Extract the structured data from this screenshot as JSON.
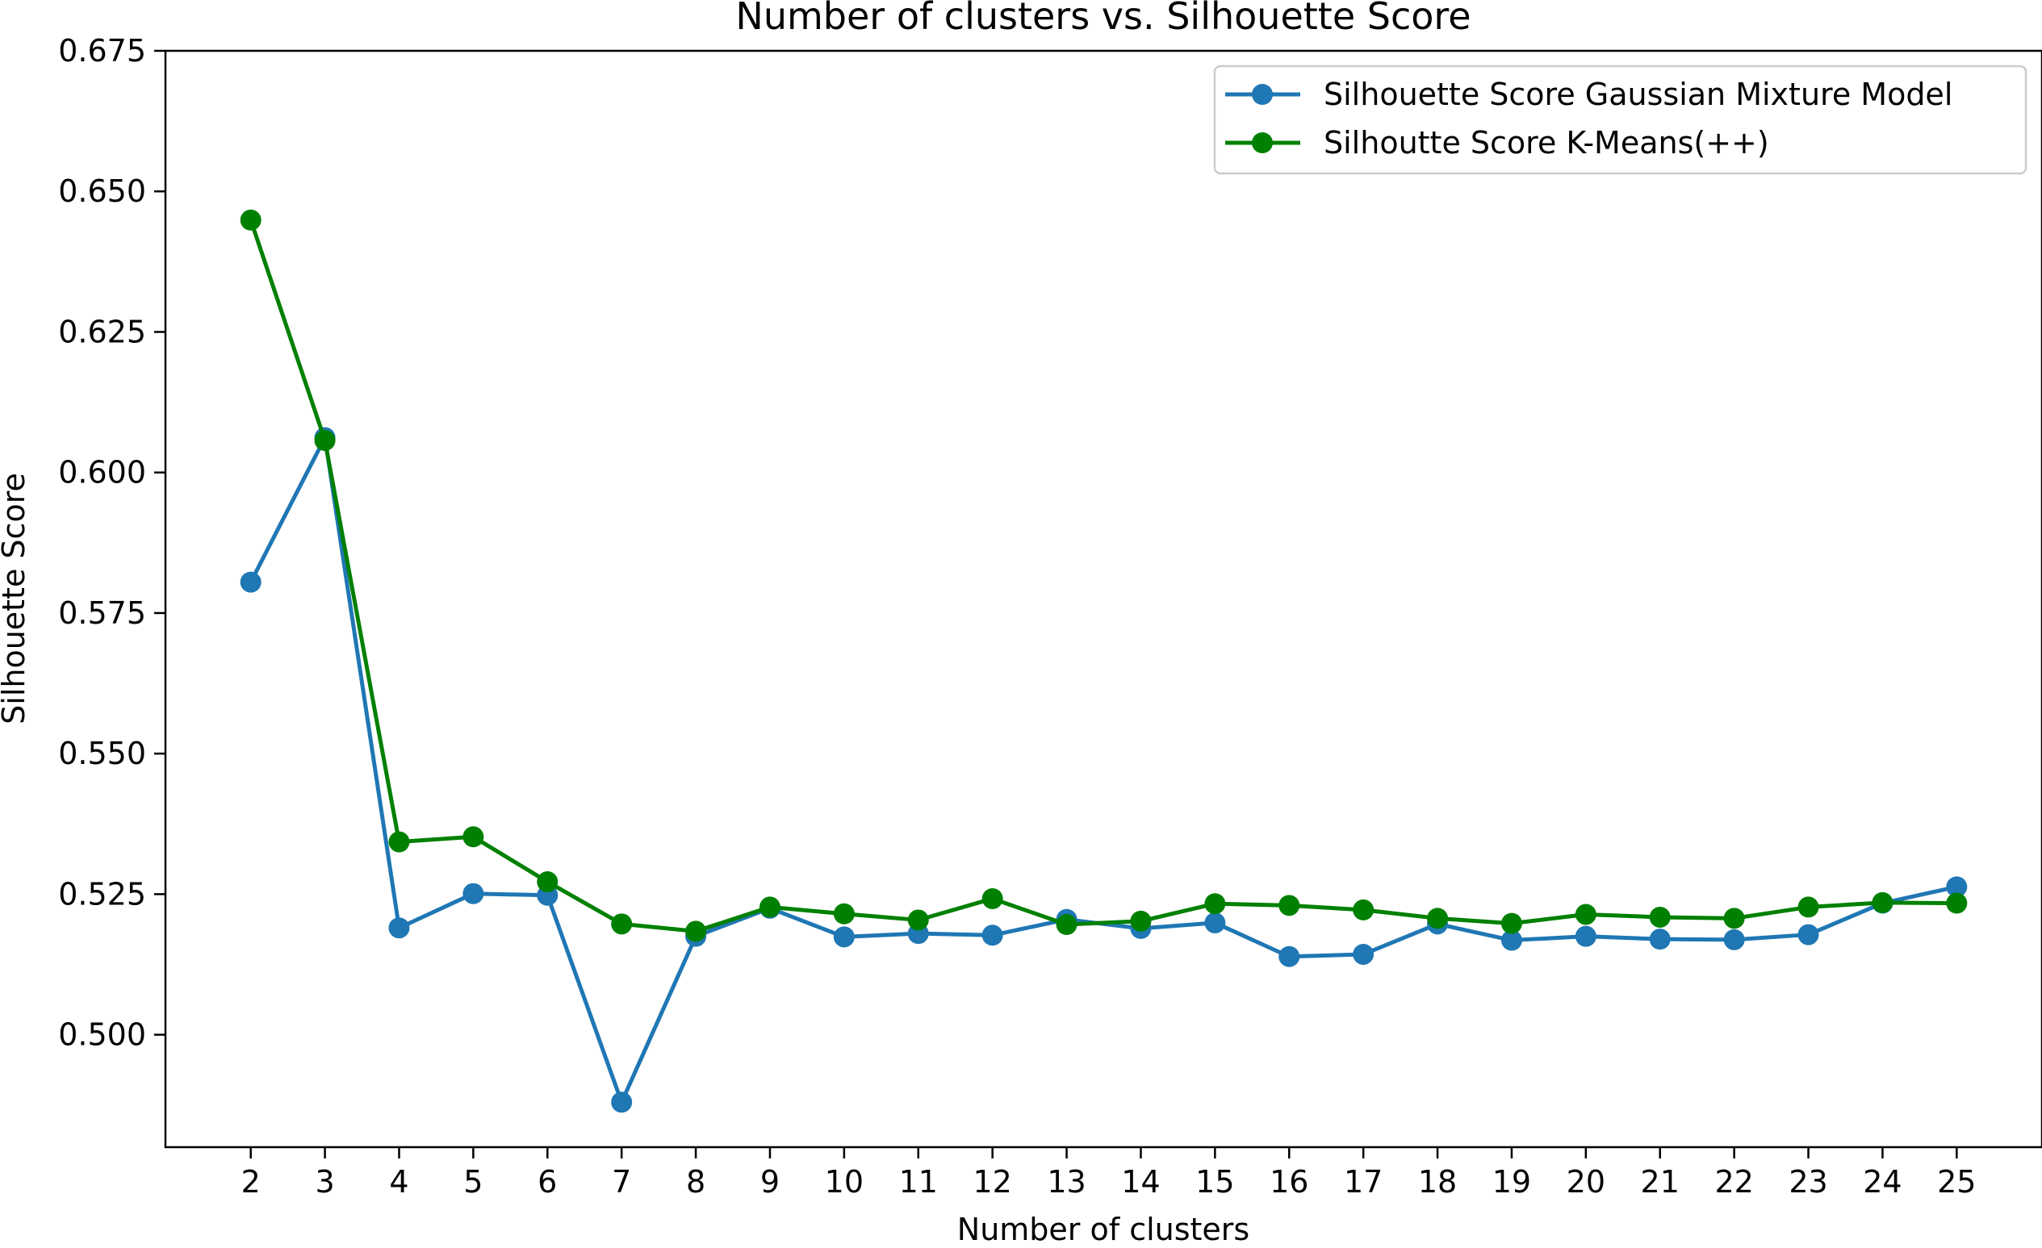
{
  "chart_data": {
    "type": "line",
    "title": "Number of clusters vs. Silhouette Score",
    "xlabel": "Number of clusters",
    "ylabel": "Silhouette Score",
    "x": [
      2,
      3,
      4,
      5,
      6,
      7,
      8,
      9,
      10,
      11,
      12,
      13,
      14,
      15,
      16,
      17,
      18,
      19,
      20,
      21,
      22,
      23,
      24,
      25
    ],
    "xticks": [
      "2",
      "3",
      "4",
      "5",
      "6",
      "7",
      "8",
      "9",
      "10",
      "11",
      "12",
      "13",
      "14",
      "15",
      "16",
      "17",
      "18",
      "19",
      "20",
      "21",
      "22",
      "23",
      "24",
      "25"
    ],
    "xlim": [
      0.85,
      26.15
    ],
    "ylim": [
      0.48,
      0.675
    ],
    "yticks": [
      "0.500",
      "0.525",
      "0.550",
      "0.575",
      "0.600",
      "0.625",
      "0.650",
      "0.675"
    ],
    "ytick_values": [
      0.5,
      0.525,
      0.55,
      0.575,
      0.6,
      0.625,
      0.65,
      0.675
    ],
    "grid": false,
    "legend_position": "top-right",
    "series": [
      {
        "name": "Silhouette Score Gaussian Mixture Model",
        "color": "#1f77b4",
        "marker": "circle",
        "values": [
          0.5805,
          0.6062,
          0.519,
          0.5251,
          0.5248,
          0.488,
          0.5175,
          0.5225,
          0.5174,
          0.518,
          0.5177,
          0.5205,
          0.5189,
          0.5199,
          0.5139,
          0.5143,
          0.5197,
          0.5168,
          0.5175,
          0.517,
          0.5169,
          0.5178,
          0.5234,
          0.5263
        ]
      },
      {
        "name": "Silhoutte Score K-Means(++)",
        "color": "#008000",
        "marker": "circle",
        "values": [
          0.6449,
          0.6057,
          0.5343,
          0.5352,
          0.5272,
          0.5197,
          0.5184,
          0.5227,
          0.5215,
          0.5204,
          0.5242,
          0.5196,
          0.5202,
          0.5233,
          0.523,
          0.5222,
          0.5207,
          0.5198,
          0.5214,
          0.5209,
          0.5207,
          0.5227,
          0.5235,
          0.5234
        ]
      }
    ]
  }
}
